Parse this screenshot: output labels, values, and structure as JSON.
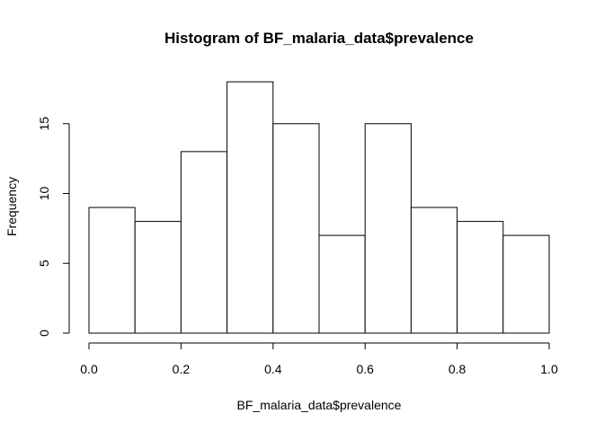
{
  "chart_data": {
    "type": "bar",
    "title": "Histogram of BF_malaria_data$prevalence",
    "xlabel": "BF_malaria_data$prevalence",
    "ylabel": "Frequency",
    "bins": [
      {
        "from": 0.0,
        "to": 0.1,
        "count": 9
      },
      {
        "from": 0.1,
        "to": 0.2,
        "count": 8
      },
      {
        "from": 0.2,
        "to": 0.3,
        "count": 13
      },
      {
        "from": 0.3,
        "to": 0.4,
        "count": 18
      },
      {
        "from": 0.4,
        "to": 0.5,
        "count": 15
      },
      {
        "from": 0.5,
        "to": 0.6,
        "count": 7
      },
      {
        "from": 0.6,
        "to": 0.7,
        "count": 15
      },
      {
        "from": 0.7,
        "to": 0.8,
        "count": 9
      },
      {
        "from": 0.8,
        "to": 0.9,
        "count": 8
      },
      {
        "from": 0.9,
        "to": 1.0,
        "count": 7
      }
    ],
    "xlim": [
      0,
      1
    ],
    "ylim": [
      0,
      18
    ],
    "x_ticks": [
      "0.0",
      "0.2",
      "0.4",
      "0.6",
      "0.8",
      "1.0"
    ],
    "y_ticks": [
      "0",
      "5",
      "10",
      "15"
    ],
    "grid": false,
    "colors": {
      "bar_fill": "#ffffff",
      "bar_stroke": "#000000"
    }
  }
}
